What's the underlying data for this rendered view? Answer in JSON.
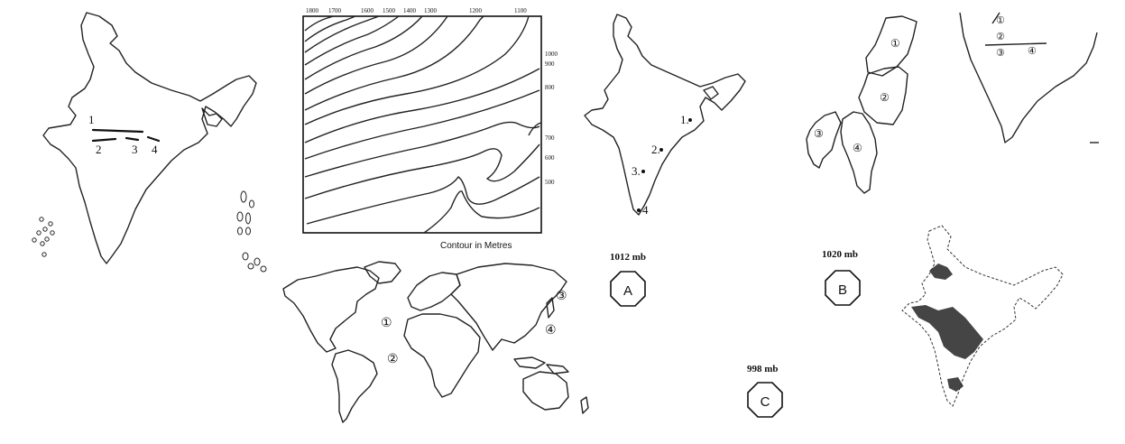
{
  "india_map_1": {
    "labels": [
      "1",
      "2",
      "3",
      "4"
    ]
  },
  "contour_map": {
    "top_labels": [
      "1800",
      "1700",
      "1600",
      "1500",
      "1400",
      "1300",
      "1200",
      "1100"
    ],
    "right_labels": [
      "1000",
      "900",
      "800",
      "700",
      "600",
      "500"
    ],
    "caption": "Contour in Metres"
  },
  "india_map_2": {
    "labels": [
      "1.",
      "2.",
      "3.",
      "4"
    ]
  },
  "states_figure": {
    "labels": [
      "①",
      "②",
      "③",
      "④"
    ]
  },
  "peninsula_figure": {
    "labels": [
      "①",
      "②",
      "③",
      "④"
    ]
  },
  "world_map": {
    "labels": [
      "①",
      "②",
      "③",
      "④"
    ]
  },
  "pressure": [
    {
      "value": "1012 mb",
      "label": "A"
    },
    {
      "value": "1020 mb",
      "label": "B"
    },
    {
      "value": "998 mb",
      "label": "C"
    }
  ]
}
